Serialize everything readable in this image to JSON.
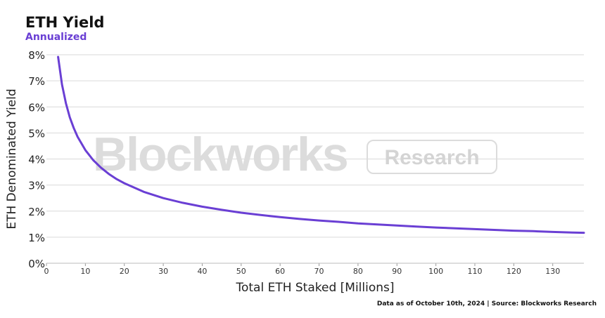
{
  "header": {
    "title": "ETH Yield",
    "subtitle": "Annualized"
  },
  "watermark": {
    "brand": "Blockworks",
    "badge": "Research"
  },
  "footnote": "Data as of October 10th, 2024 | Source: Blockworks Research",
  "colors": {
    "line": "#6a3fd4",
    "grid": "#d9d9d9",
    "watermark": "#dcdcdc"
  },
  "chart_data": {
    "type": "line",
    "title": "ETH Yield",
    "subtitle": "Annualized",
    "xlabel": "Total ETH Staked [Millions]",
    "ylabel": "ETH Denominated Yield",
    "xlim": [
      0,
      138
    ],
    "ylim": [
      0,
      8
    ],
    "xticks": [
      "0",
      "10",
      "20",
      "30",
      "40",
      "50",
      "60",
      "70",
      "80",
      "90",
      "100",
      "110",
      "120",
      "130"
    ],
    "yticks": [
      "0%",
      "1%",
      "2%",
      "3%",
      "4%",
      "5%",
      "6%",
      "7%",
      "8%"
    ],
    "grid": "horizontal",
    "series": [
      {
        "x": [
          3,
          4,
          5,
          6,
          7,
          8,
          10,
          12,
          14,
          16,
          18,
          20,
          25,
          30,
          35,
          40,
          45,
          50,
          55,
          60,
          65,
          70,
          75,
          80,
          85,
          90,
          95,
          100,
          105,
          110,
          115,
          120,
          125,
          130,
          135,
          138
        ],
        "values": [
          7.92,
          6.86,
          6.14,
          5.6,
          5.19,
          4.85,
          4.34,
          3.96,
          3.67,
          3.43,
          3.23,
          3.07,
          2.74,
          2.5,
          2.32,
          2.17,
          2.05,
          1.94,
          1.85,
          1.77,
          1.7,
          1.64,
          1.59,
          1.53,
          1.49,
          1.45,
          1.41,
          1.37,
          1.34,
          1.31,
          1.28,
          1.25,
          1.23,
          1.2,
          1.18,
          1.17
        ]
      }
    ]
  }
}
